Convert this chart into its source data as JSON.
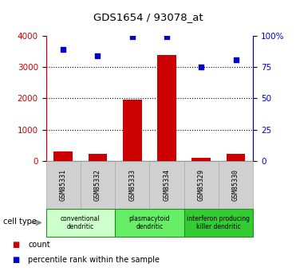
{
  "title": "GDS1654 / 93078_at",
  "samples": [
    "GSM85331",
    "GSM85332",
    "GSM85333",
    "GSM85334",
    "GSM85329",
    "GSM85330"
  ],
  "counts": [
    300,
    230,
    1950,
    3380,
    110,
    230
  ],
  "percentile_ranks": [
    89,
    84,
    99,
    99,
    75,
    81
  ],
  "ylim_left": [
    0,
    4000
  ],
  "ylim_right": [
    0,
    100
  ],
  "yticks_left": [
    0,
    1000,
    2000,
    3000,
    4000
  ],
  "yticks_right": [
    0,
    25,
    50,
    75,
    100
  ],
  "ytick_labels_right": [
    "0",
    "25",
    "50",
    "75",
    "100%"
  ],
  "bar_color": "#cc0000",
  "scatter_color": "#0000cc",
  "cell_groups": [
    {
      "label": "conventional\ndendritic",
      "indices": [
        0,
        1
      ],
      "color": "#ccffcc"
    },
    {
      "label": "plasmacytoid\ndendritic",
      "indices": [
        2,
        3
      ],
      "color": "#66ee66"
    },
    {
      "label": "interferon producing\nkiller dendritic",
      "indices": [
        4,
        5
      ],
      "color": "#33cc33"
    }
  ],
  "tick_label_color_left": "#cc0000",
  "tick_label_color_right": "#0000cc",
  "cell_type_label": "cell type",
  "legend_count_label": "count",
  "legend_percentile_label": "percentile rank within the sample",
  "sample_box_color": "#d0d0d0",
  "sample_box_border": "#aaaaaa",
  "group_border_color": "#228B22"
}
